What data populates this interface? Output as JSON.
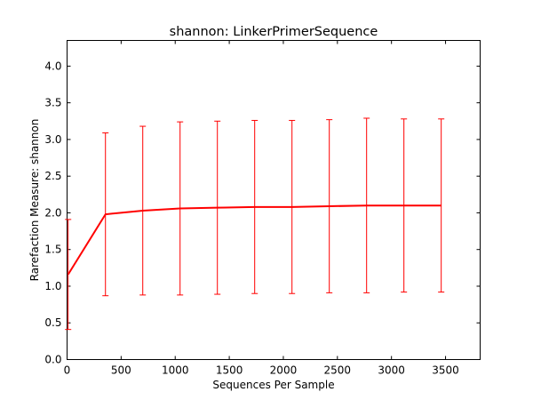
{
  "chart_data": {
    "type": "line",
    "title": "shannon: LinkerPrimerSequence",
    "xlabel": "Sequences Per Sample",
    "ylabel": "Rarefaction Measure: shannon",
    "xlim": [
      0,
      3820
    ],
    "ylim": [
      0.0,
      4.35
    ],
    "xticks": [
      0,
      500,
      1000,
      1500,
      2000,
      2500,
      3000,
      3500
    ],
    "xtick_labels": [
      "0",
      "500",
      "1000",
      "1500",
      "2000",
      "2500",
      "3000",
      "3500"
    ],
    "yticks": [
      0.0,
      0.5,
      1.0,
      1.5,
      2.0,
      2.5,
      3.0,
      3.5,
      4.0
    ],
    "ytick_labels": [
      "0.0",
      "0.5",
      "1.0",
      "1.5",
      "2.0",
      "2.5",
      "3.0",
      "3.5",
      "4.0"
    ],
    "grid": false,
    "legend": false,
    "series": [
      {
        "color": "#ff0000",
        "points": [
          {
            "x": 10,
            "y": 1.16,
            "err": 0.75
          },
          {
            "x": 355,
            "y": 1.98,
            "err": 1.11
          },
          {
            "x": 700,
            "y": 2.03,
            "err": 1.15
          },
          {
            "x": 1045,
            "y": 2.06,
            "err": 1.18
          },
          {
            "x": 1390,
            "y": 2.07,
            "err": 1.18
          },
          {
            "x": 1735,
            "y": 2.08,
            "err": 1.18
          },
          {
            "x": 2080,
            "y": 2.08,
            "err": 1.18
          },
          {
            "x": 2425,
            "y": 2.09,
            "err": 1.18
          },
          {
            "x": 2770,
            "y": 2.1,
            "err": 1.19
          },
          {
            "x": 3115,
            "y": 2.1,
            "err": 1.18
          },
          {
            "x": 3460,
            "y": 2.1,
            "err": 1.18
          }
        ]
      }
    ]
  }
}
